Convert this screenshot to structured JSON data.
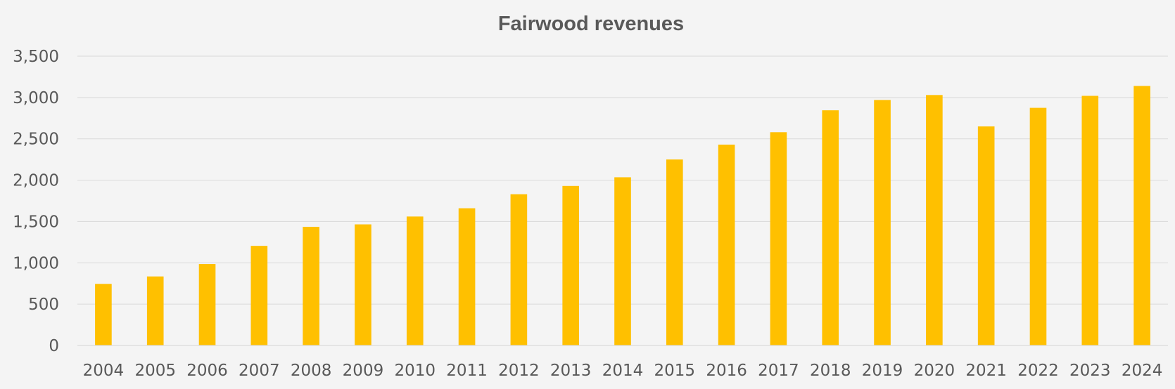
{
  "chart_data": {
    "type": "bar",
    "title": "Fairwood revenues",
    "xlabel": "",
    "ylabel": "",
    "categories": [
      "2004",
      "2005",
      "2006",
      "2007",
      "2008",
      "2009",
      "2010",
      "2011",
      "2012",
      "2013",
      "2014",
      "2015",
      "2016",
      "2017",
      "2018",
      "2019",
      "2020",
      "2021",
      "2022",
      "2023",
      "2024"
    ],
    "values": [
      745,
      835,
      985,
      1205,
      1435,
      1465,
      1560,
      1660,
      1830,
      1930,
      2035,
      2250,
      2430,
      2580,
      2845,
      2970,
      3030,
      2650,
      2875,
      3020,
      3140
    ],
    "ylim": [
      0,
      3500
    ],
    "yticks": [
      0,
      500,
      1000,
      1500,
      2000,
      2500,
      3000,
      3500
    ],
    "ytick_labels": [
      "0",
      "500",
      "1,000",
      "1,500",
      "2,000",
      "2,500",
      "3,000",
      "3,500"
    ],
    "bar_color": "#ffc000",
    "grid": true,
    "legend": "none"
  }
}
